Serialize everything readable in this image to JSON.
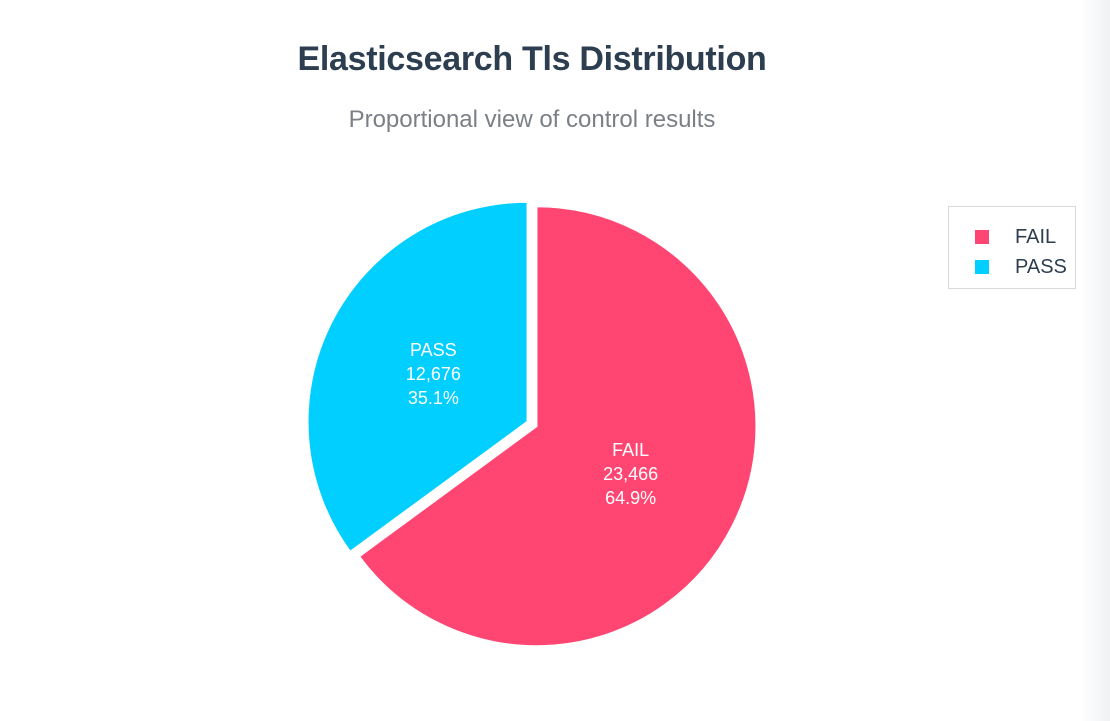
{
  "chart_data": {
    "type": "pie",
    "title": "Elasticsearch Tls Distribution",
    "subtitle": "Proportional view of control results",
    "legend_position": "top-right",
    "slices": [
      {
        "label": "FAIL",
        "value": 23466,
        "value_text": "23,466",
        "percent_text": "64.9%",
        "color": "#ff4571"
      },
      {
        "label": "PASS",
        "value": 12676,
        "value_text": "12,676",
        "percent_text": "35.1%",
        "color": "#00cfff"
      }
    ]
  },
  "legend": {
    "items": [
      {
        "label": "FAIL",
        "color": "#ff4571"
      },
      {
        "label": "PASS",
        "color": "#00cfff"
      }
    ]
  }
}
